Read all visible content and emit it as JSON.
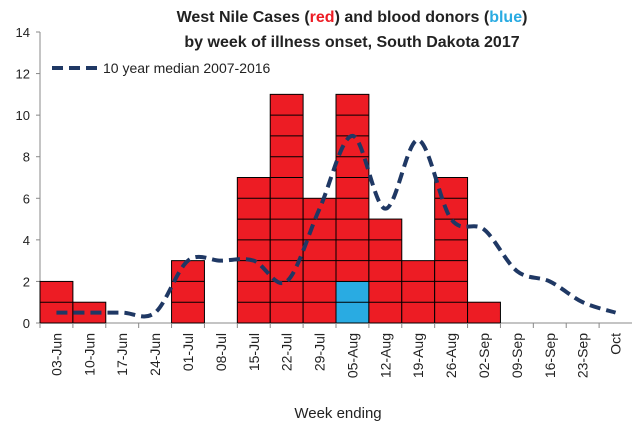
{
  "chart_data": {
    "type": "bar",
    "title": [
      [
        "West Nile Cases (",
        "red",
        ") and blood donors (",
        "blue",
        ")"
      ],
      [
        "by week of illness onset, South Dakota 2017"
      ]
    ],
    "x_label": "Week ending",
    "categories": [
      "03-Jun",
      "10-Jun",
      "17-Jun",
      "24-Jun",
      "01-Jul",
      "08-Jul",
      "15-Jul",
      "22-Jul",
      "29-Jul",
      "05-Aug",
      "12-Aug",
      "19-Aug",
      "26-Aug",
      "02-Sep",
      "09-Sep",
      "16-Sep",
      "23-Sep",
      "Oct"
    ],
    "series": [
      {
        "color": "#ed1c24",
        "values": [
          2,
          1,
          0,
          0,
          3,
          0,
          7,
          11,
          6,
          9,
          5,
          3,
          7,
          1,
          0,
          0,
          0,
          0
        ]
      },
      {
        "color": "#29abe2",
        "values": [
          0,
          0,
          0,
          0,
          0,
          0,
          0,
          0,
          0,
          2,
          0,
          0,
          0,
          0,
          0,
          0,
          0,
          0
        ]
      },
      {
        "name": "10 year median 2007-2016",
        "type": "line",
        "color": "#1f3864",
        "values": [
          0.5,
          0.5,
          0.5,
          0.5,
          3,
          3,
          3,
          2,
          5.5,
          9,
          5.5,
          8.8,
          5,
          4.5,
          2.5,
          2,
          1,
          0.5
        ]
      }
    ],
    "stack_order": [
      1,
      0
    ],
    "ylim": [
      0,
      14
    ],
    "yticks": [
      0,
      2,
      4,
      6,
      8,
      10,
      12,
      14
    ],
    "legend": "top-left"
  }
}
